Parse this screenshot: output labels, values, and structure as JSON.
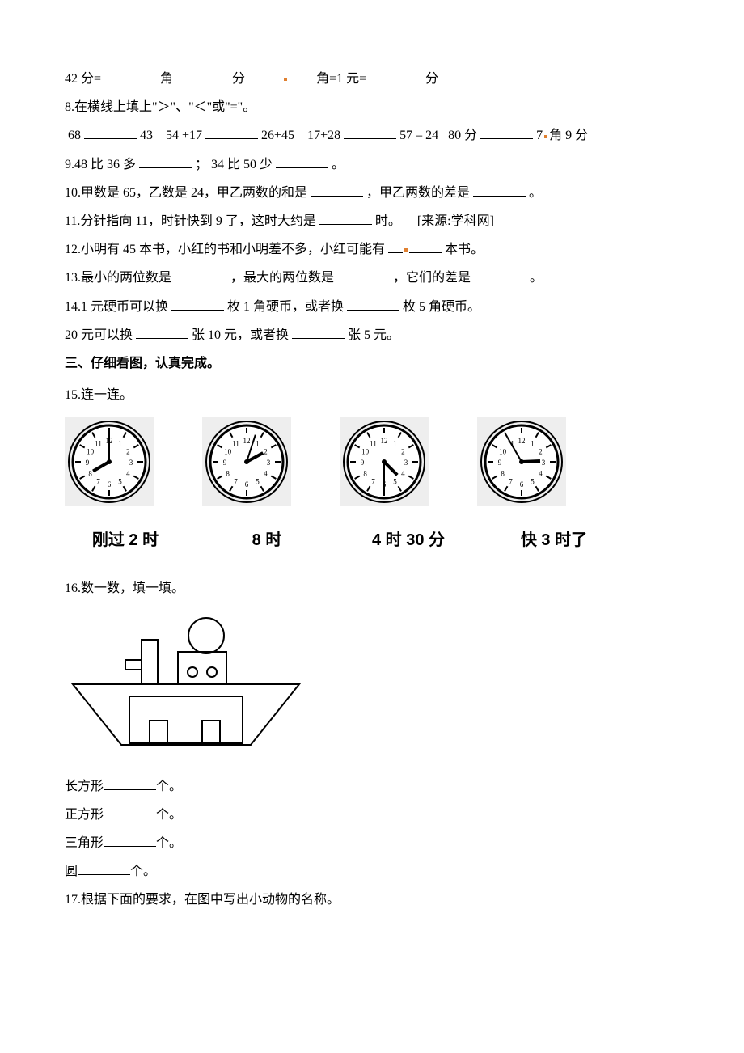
{
  "q7": {
    "part1_prefix": "42 分=",
    "unit_jiao": "角",
    "unit_fen": "分",
    "part2_mid": "角=1 元=",
    "unit_fen2": "分"
  },
  "q8": {
    "stem": "8.在横线上填上\"＞\"、\"＜\"或\"=\"。",
    "a": "68",
    "b": "43",
    "c": "54 +17",
    "d": "26+45",
    "e": "17+28",
    "f": "57 – 24",
    "g": "80 分",
    "h": "7",
    "h_tail": "角 9 分"
  },
  "q9": {
    "p1": "9.48 比 36 多",
    "sep": "； 34 比 50 少",
    "end": "。"
  },
  "q10": {
    "p1": "10.甲数是 65，乙数是 24，甲乙两数的和是",
    "p2": "，甲乙两数的差是",
    "end": "。"
  },
  "q11": {
    "p1": "11.分针指向 11，时针快到 9 了，这时大约是",
    "p2": "时。",
    "src": "[来源:学科网]"
  },
  "q12": {
    "p1": "12.小明有 45 本书，小红的书和小明差不多，小红可能有",
    "p2": "本书。"
  },
  "q13": {
    "p1": "13.最小的两位数是",
    "p2": "，最大的两位数是",
    "p3": "，它们的差是",
    "end": "。"
  },
  "q14": {
    "l1a": "14.1 元硬币可以换",
    "l1b": "枚 1 角硬币，或者换",
    "l1c": "枚 5 角硬币。",
    "l2a": "20 元可以换",
    "l2b": "张 10 元，或者换",
    "l2c": "张 5 元。"
  },
  "section3": "三、仔细看图，认真完成。",
  "q15": {
    "stem": "15.连一连。",
    "clocks": [
      {
        "hour": 8,
        "minute": 0
      },
      {
        "hour": 2,
        "minute": 3
      },
      {
        "hour": 4,
        "minute": 30
      },
      {
        "hour": 2,
        "minute": 55
      }
    ],
    "labels": [
      "刚过 2 时",
      "8 时",
      "4 时 30 分",
      "快 3 时了"
    ],
    "clock_style": {
      "bg": "#eeeeee",
      "face_stroke": "#000000",
      "tick_color": "#000000",
      "hand_color": "#000000"
    }
  },
  "q16": {
    "stem": "16.数一数，填一填。",
    "shapes": [
      {
        "label": "长方形",
        "tail": "个。"
      },
      {
        "label": "正方形",
        "tail": "个。"
      },
      {
        "label": "三角形",
        "tail": "个。"
      },
      {
        "label": "圆",
        "tail": "个。"
      }
    ],
    "fig_style": {
      "stroke": "#000000",
      "bg": "#ffffff"
    }
  },
  "q17": "17.根据下面的要求，在图中写出小动物的名称。"
}
